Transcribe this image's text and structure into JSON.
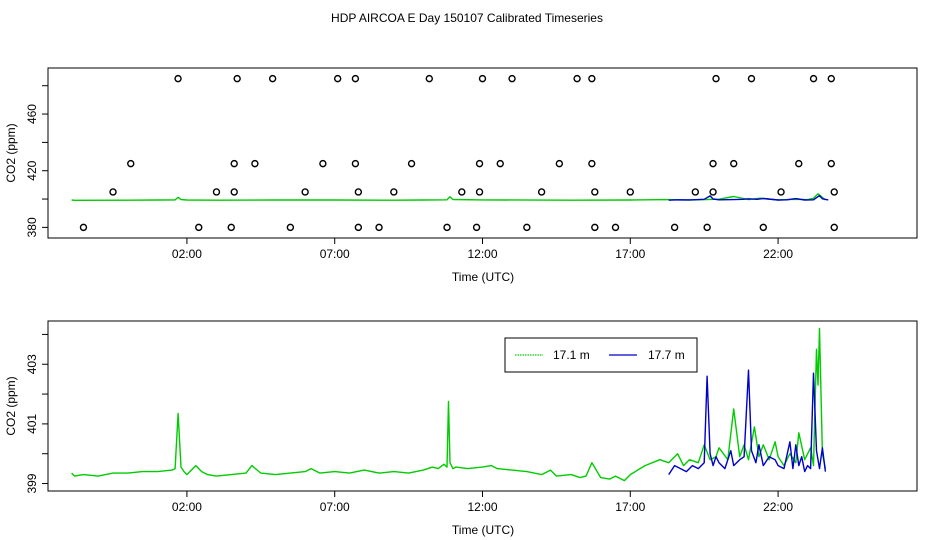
{
  "page_title": "HDP AIRCOA E  Day 150107  Calibrated Timeseries",
  "colors": {
    "green": "#00cc00",
    "blue": "#0000cc",
    "black": "#000000"
  },
  "chart_data": [
    {
      "type": "scatter",
      "xlabel": "Time (UTC)",
      "ylabel": "CO2 (ppm)",
      "xlim": [
        -2.7,
        26.7
      ],
      "ylim": [
        372.5,
        492.5
      ],
      "xticks": [
        {
          "value": 2,
          "label": "02:00"
        },
        {
          "value": 7,
          "label": "07:00"
        },
        {
          "value": 12,
          "label": "12:00"
        },
        {
          "value": 17,
          "label": "17:00"
        },
        {
          "value": 22,
          "label": "22:00"
        }
      ],
      "yticks": [
        380,
        400,
        420,
        440,
        460,
        480
      ],
      "ytick_labels": [
        "380",
        "420",
        "460"
      ],
      "circles": [
        [
          -1.5,
          380
        ],
        [
          -0.5,
          405
        ],
        [
          0.1,
          425
        ],
        [
          1.7,
          485
        ],
        [
          2.4,
          380
        ],
        [
          3.0,
          405
        ],
        [
          3.5,
          380
        ],
        [
          3.6,
          405
        ],
        [
          3.6,
          425
        ],
        [
          3.7,
          485
        ],
        [
          4.3,
          425
        ],
        [
          4.9,
          485
        ],
        [
          5.5,
          380
        ],
        [
          6.0,
          405
        ],
        [
          6.6,
          425
        ],
        [
          7.1,
          485
        ],
        [
          7.7,
          485
        ],
        [
          7.7,
          425
        ],
        [
          7.8,
          405
        ],
        [
          7.8,
          380
        ],
        [
          8.5,
          380
        ],
        [
          9.0,
          405
        ],
        [
          9.6,
          425
        ],
        [
          10.2,
          485
        ],
        [
          10.8,
          380
        ],
        [
          11.3,
          405
        ],
        [
          11.8,
          380
        ],
        [
          11.9,
          405
        ],
        [
          11.9,
          425
        ],
        [
          12.0,
          485
        ],
        [
          12.6,
          425
        ],
        [
          13.0,
          485
        ],
        [
          13.5,
          380
        ],
        [
          14.0,
          405
        ],
        [
          14.6,
          425
        ],
        [
          15.2,
          485
        ],
        [
          15.7,
          485
        ],
        [
          15.7,
          425
        ],
        [
          15.8,
          405
        ],
        [
          15.8,
          380
        ],
        [
          16.5,
          380
        ],
        [
          17.0,
          405
        ],
        [
          18.5,
          380
        ],
        [
          19.2,
          405
        ],
        [
          19.6,
          380
        ],
        [
          19.8,
          405
        ],
        [
          19.8,
          425
        ],
        [
          19.9,
          485
        ],
        [
          20.5,
          425
        ],
        [
          21.1,
          485
        ],
        [
          21.5,
          380
        ],
        [
          22.1,
          405
        ],
        [
          22.7,
          425
        ],
        [
          23.2,
          485
        ],
        [
          23.8,
          485
        ],
        [
          23.8,
          425
        ],
        [
          23.9,
          405
        ],
        [
          23.9,
          380
        ]
      ],
      "series": [
        {
          "name": "",
          "color": "#00cc00",
          "x": [
            -1.9,
            -1.8,
            0,
            1.0,
            1.6,
            1.7,
            1.8,
            2.0,
            3,
            5,
            7,
            9,
            10.0,
            10.8,
            10.9,
            11.0,
            12,
            15,
            17,
            18.3,
            19,
            20,
            20.5,
            21,
            21.4,
            22,
            22.5,
            23,
            23.2,
            23.35,
            23.45,
            23.6
          ],
          "y": [
            399.3,
            399.1,
            399.2,
            399.3,
            399.4,
            401.2,
            399.6,
            399.3,
            399.2,
            399.3,
            399.3,
            399.2,
            399.3,
            399.5,
            401.6,
            399.7,
            399.4,
            399.2,
            399.3,
            399.6,
            399.3,
            399.9,
            401.8,
            399.6,
            400.6,
            399.3,
            399.8,
            399.6,
            400.5,
            403.7,
            402.0,
            399.4
          ]
        },
        {
          "name": "",
          "color": "#0000cc",
          "x": [
            18.3,
            18.6,
            19,
            19.5,
            19.7,
            19.8,
            20.0,
            20.5,
            20.8,
            21.0,
            21.3,
            21.5,
            22,
            22.3,
            22.6,
            22.9,
            23.2,
            23.4,
            23.5,
            23.7
          ],
          "y": [
            399.2,
            399.5,
            399.4,
            399.8,
            402.2,
            400.0,
            399.5,
            399.6,
            399.8,
            400.2,
            399.8,
            400.4,
            399.3,
            399.5,
            400.3,
            399.3,
            399.5,
            402.4,
            400.2,
            399.4
          ]
        }
      ]
    },
    {
      "type": "line",
      "xlabel": "Time (UTC)",
      "ylabel": "CO2 (ppm)",
      "xlim": [
        -2.7,
        26.7
      ],
      "ylim": [
        398.75,
        404.45
      ],
      "xticks": [
        {
          "value": 2,
          "label": "02:00"
        },
        {
          "value": 7,
          "label": "07:00"
        },
        {
          "value": 12,
          "label": "12:00"
        },
        {
          "value": 17,
          "label": "17:00"
        },
        {
          "value": 22,
          "label": "22:00"
        }
      ],
      "yticks": [
        399,
        400,
        401,
        402,
        403,
        404
      ],
      "ytick_labels": [
        "399",
        "401",
        "403"
      ],
      "legend": {
        "position": "top-right",
        "entries": [
          {
            "label": "17.1 m",
            "color": "#00cc00"
          },
          {
            "label": "17.7 m",
            "color": "#0000cc"
          }
        ]
      },
      "series": [
        {
          "name": "17.1 m",
          "color": "#00cc00",
          "x": [
            -1.9,
            -1.8,
            -1.5,
            -1.0,
            -0.5,
            0,
            0.5,
            1.0,
            1.5,
            1.6,
            1.7,
            1.8,
            1.9,
            2.0,
            2.3,
            2.5,
            2.7,
            3.0,
            3.5,
            4.0,
            4.2,
            4.5,
            5,
            5.5,
            6.0,
            6.2,
            6.5,
            7,
            7.5,
            8,
            8.5,
            9,
            9.5,
            10.0,
            10.3,
            10.5,
            10.7,
            10.8,
            10.85,
            10.9,
            11.0,
            11.1,
            11.5,
            12.0,
            12.3,
            12.5,
            13.0,
            13.5,
            14.0,
            14.3,
            14.5,
            15.0,
            15.3,
            15.5,
            15.7,
            16.0,
            16.3,
            16.5,
            16.8,
            17.0,
            17.5,
            18.0,
            18.3,
            18.6,
            18.8,
            19.0,
            19.3,
            19.5,
            19.7,
            19.9,
            20.0,
            20.3,
            20.5,
            20.7,
            20.85,
            21.0,
            21.2,
            21.35,
            21.5,
            21.7,
            21.9,
            22.0,
            22.2,
            22.4,
            22.6,
            22.7,
            22.9,
            23.1,
            23.2,
            23.3,
            23.35,
            23.4,
            23.5,
            23.6
          ],
          "y": [
            399.35,
            399.25,
            399.3,
            399.25,
            399.35,
            399.35,
            399.4,
            399.4,
            399.45,
            399.5,
            401.35,
            399.55,
            399.4,
            399.3,
            399.6,
            399.4,
            399.3,
            399.25,
            399.3,
            399.35,
            399.6,
            399.35,
            399.3,
            399.35,
            399.4,
            399.5,
            399.35,
            399.4,
            399.35,
            399.45,
            399.35,
            399.4,
            399.35,
            399.45,
            399.55,
            399.5,
            399.65,
            399.55,
            401.75,
            399.7,
            399.5,
            399.55,
            399.5,
            399.55,
            399.6,
            399.5,
            399.45,
            399.4,
            399.3,
            399.45,
            399.25,
            399.3,
            399.2,
            399.25,
            399.7,
            399.2,
            399.15,
            399.25,
            399.1,
            399.3,
            399.6,
            399.8,
            399.7,
            400.0,
            399.6,
            399.8,
            399.7,
            400.3,
            399.8,
            399.9,
            400.2,
            399.8,
            401.5,
            399.9,
            400.3,
            399.8,
            400.9,
            399.9,
            400.3,
            399.8,
            400.4,
            399.9,
            399.6,
            400.0,
            399.7,
            400.7,
            399.8,
            400.2,
            399.6,
            403.5,
            402.3,
            404.2,
            400.0,
            399.5
          ]
        },
        {
          "name": "17.7 m",
          "color": "#0000cc",
          "x": [
            18.3,
            18.5,
            18.7,
            18.9,
            19.1,
            19.3,
            19.5,
            19.6,
            19.7,
            19.8,
            19.9,
            20.0,
            20.2,
            20.4,
            20.5,
            20.7,
            20.85,
            21.0,
            21.1,
            21.25,
            21.35,
            21.5,
            21.7,
            21.9,
            22.0,
            22.2,
            22.4,
            22.5,
            22.6,
            22.7,
            22.8,
            22.9,
            23.0,
            23.1,
            23.2,
            23.3,
            23.4,
            23.5,
            23.6
          ],
          "y": [
            399.3,
            399.6,
            399.5,
            399.4,
            399.6,
            399.5,
            399.7,
            402.6,
            400.0,
            399.6,
            399.9,
            399.7,
            399.5,
            400.1,
            399.6,
            399.8,
            399.9,
            402.8,
            400.1,
            399.7,
            400.3,
            399.6,
            399.9,
            399.8,
            399.6,
            399.5,
            400.4,
            399.5,
            400.3,
            399.6,
            399.9,
            399.4,
            399.6,
            399.5,
            402.7,
            400.1,
            399.5,
            400.2,
            399.4
          ]
        }
      ]
    }
  ]
}
